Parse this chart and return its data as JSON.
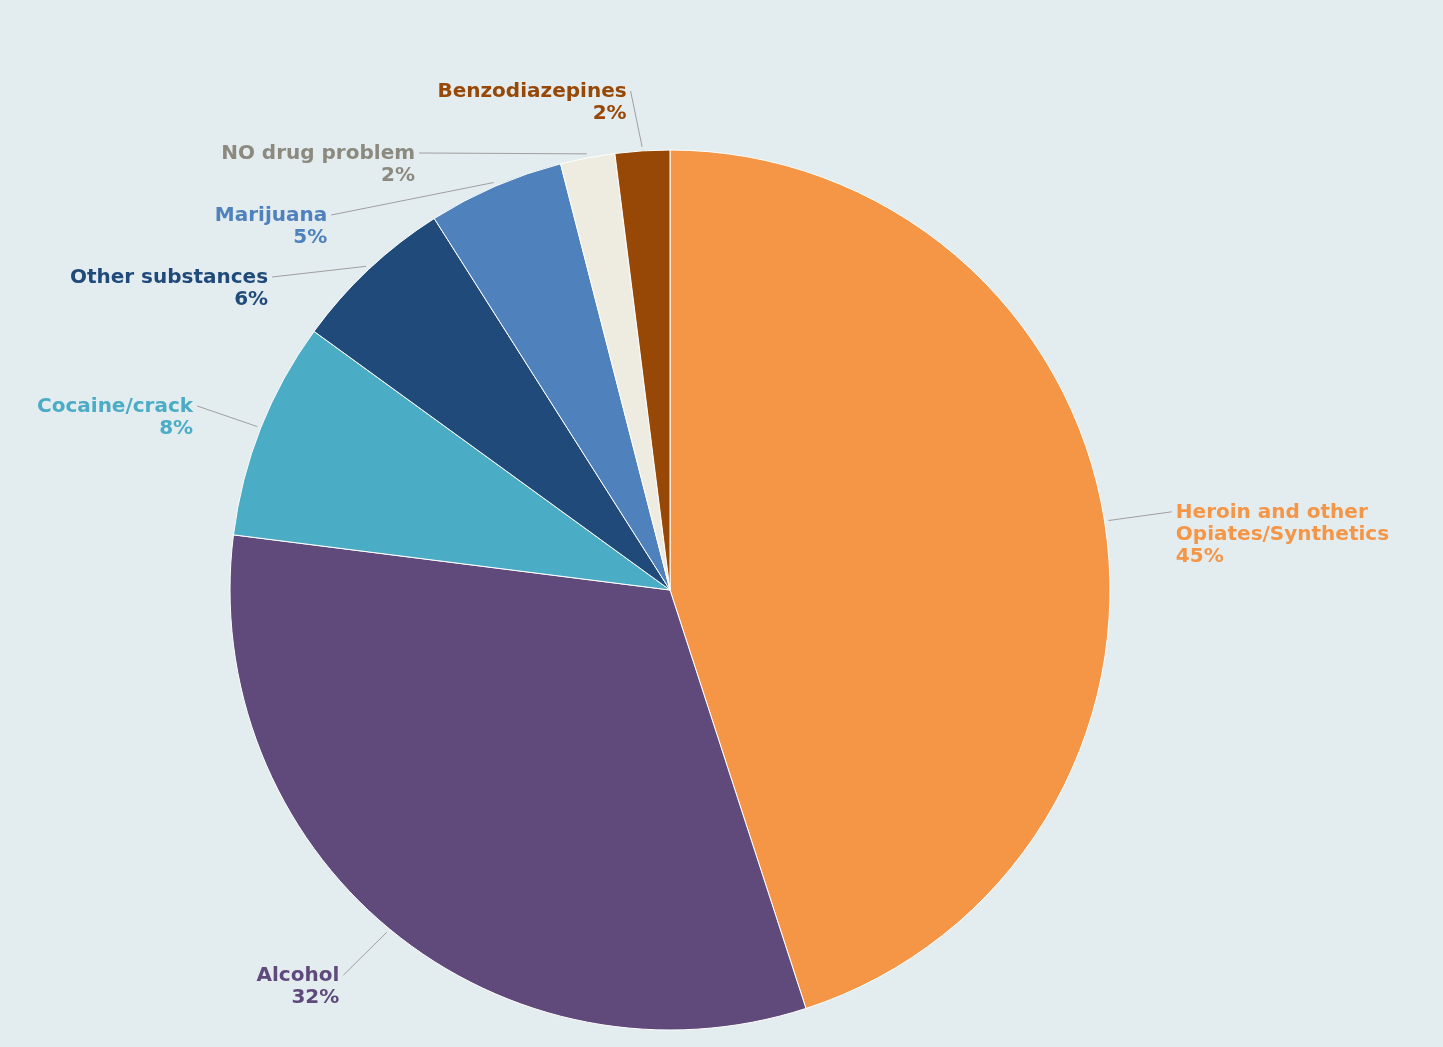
{
  "chart_data": {
    "type": "pie",
    "categories": [
      "Heroin and other Opiates/Synthetics",
      "Alcohol",
      "Cocaine/crack",
      "Other substances",
      "Marijuana",
      "NO drug problem",
      "Benzodiazepines"
    ],
    "values": [
      45,
      32,
      8,
      6,
      5,
      2,
      2
    ],
    "value_labels": [
      "45%",
      "32%",
      "8%",
      "6%",
      "5%",
      "2%",
      "2%"
    ],
    "colors": [
      "#f59647",
      "#5f4a7b",
      "#4aacc5",
      "#1f4a7a",
      "#4f81bd",
      "#eeece1",
      "#974806"
    ]
  }
}
